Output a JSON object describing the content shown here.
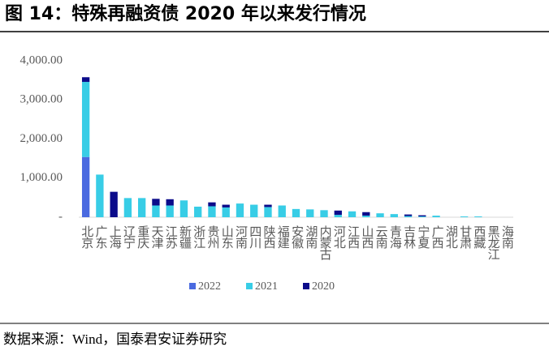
{
  "chart_data": {
    "type": "bar",
    "stacked": true,
    "title": "图 14：特殊再融资债 2020 年以来发行情况",
    "source": "数据来源：Wind，国泰君安证券研究",
    "categories": [
      "北京",
      "广东",
      "上海",
      "辽宁",
      "重庆",
      "天津",
      "江苏",
      "新疆",
      "浙江",
      "贵州",
      "山东",
      "河南",
      "四川",
      "陕西",
      "福建",
      "安徽",
      "湖南",
      "内蒙古",
      "河北",
      "江西",
      "山西",
      "云南",
      "青海",
      "吉林",
      "宁夏",
      "广西",
      "湖北",
      "甘肃",
      "西藏",
      "黑龙江",
      "海南"
    ],
    "series": [
      {
        "name": "2022",
        "color": "#4a6ae0",
        "values": [
          1540,
          0,
          0,
          0,
          0,
          0,
          0,
          0,
          0,
          0,
          0,
          0,
          0,
          0,
          0,
          0,
          0,
          0,
          0,
          0,
          0,
          0,
          0,
          0,
          0,
          0,
          0,
          0,
          0,
          0,
          0
        ]
      },
      {
        "name": "2021",
        "color": "#38cde6",
        "values": [
          1920,
          1090,
          0,
          490,
          490,
          300,
          300,
          430,
          270,
          280,
          250,
          350,
          320,
          260,
          300,
          210,
          200,
          180,
          60,
          150,
          40,
          100,
          80,
          30,
          20,
          40,
          0,
          20,
          20,
          0,
          0
        ]
      },
      {
        "name": "2020",
        "color": "#0b0b8a",
        "values": [
          120,
          0,
          650,
          0,
          0,
          170,
          160,
          0,
          0,
          100,
          70,
          0,
          0,
          60,
          0,
          0,
          0,
          0,
          110,
          0,
          90,
          0,
          0,
          40,
          30,
          0,
          0,
          0,
          0,
          0,
          0
        ]
      }
    ],
    "ylim": [
      0,
      4000
    ],
    "yticks": [
      {
        "value": 0,
        "label": "-"
      },
      {
        "value": 1000,
        "label": "1,000.00"
      },
      {
        "value": 2000,
        "label": "2,000.00"
      },
      {
        "value": 3000,
        "label": "3,000.00"
      },
      {
        "value": 4000,
        "label": "4,000.00"
      }
    ],
    "grid": false
  }
}
